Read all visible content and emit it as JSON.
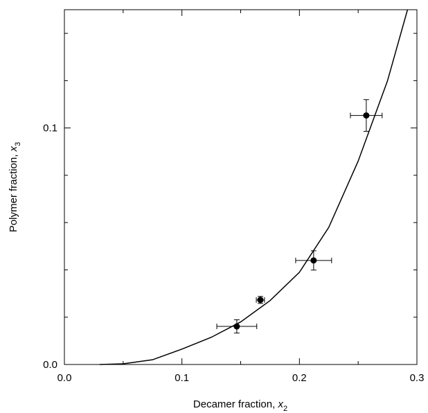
{
  "chart_data": {
    "type": "scatter",
    "xlabel": {
      "text": "Decamer fraction, ",
      "var": "x",
      "sub": "2"
    },
    "ylabel": {
      "text": "Polymer fraction, ",
      "var": "x",
      "sub": "3"
    },
    "xlim": [
      0,
      0.3
    ],
    "ylim": [
      0,
      0.15
    ],
    "xticks": [
      {
        "value": 0,
        "label": "0.0"
      },
      0.1,
      0.2,
      0.3
    ],
    "yticks": [
      {
        "value": 0,
        "label": "0.0"
      },
      0.1
    ],
    "xminorticks": [
      0.05,
      0.15,
      0.25
    ],
    "yminorticks": [
      0.02,
      0.04,
      0.06,
      0.08,
      0.12,
      0.14
    ],
    "color": "#000000",
    "points": {
      "x": [
        0.1467,
        0.1668,
        0.2121,
        0.2569
      ],
      "y": [
        0.0161,
        0.0273,
        0.044,
        0.1053
      ],
      "xerr": [
        0.017,
        0.0035,
        0.0153,
        0.0135
      ],
      "yerr": [
        0.0028,
        0.0015,
        0.0041,
        0.0067
      ]
    },
    "curve": {
      "x": [
        0.03,
        0.05,
        0.075,
        0.1,
        0.125,
        0.15,
        0.175,
        0.2,
        0.225,
        0.25,
        0.275,
        0.292
      ],
      "y": [
        0,
        0.0003,
        0.002,
        0.0065,
        0.0115,
        0.018,
        0.027,
        0.039,
        0.058,
        0.086,
        0.12,
        0.15
      ]
    }
  }
}
